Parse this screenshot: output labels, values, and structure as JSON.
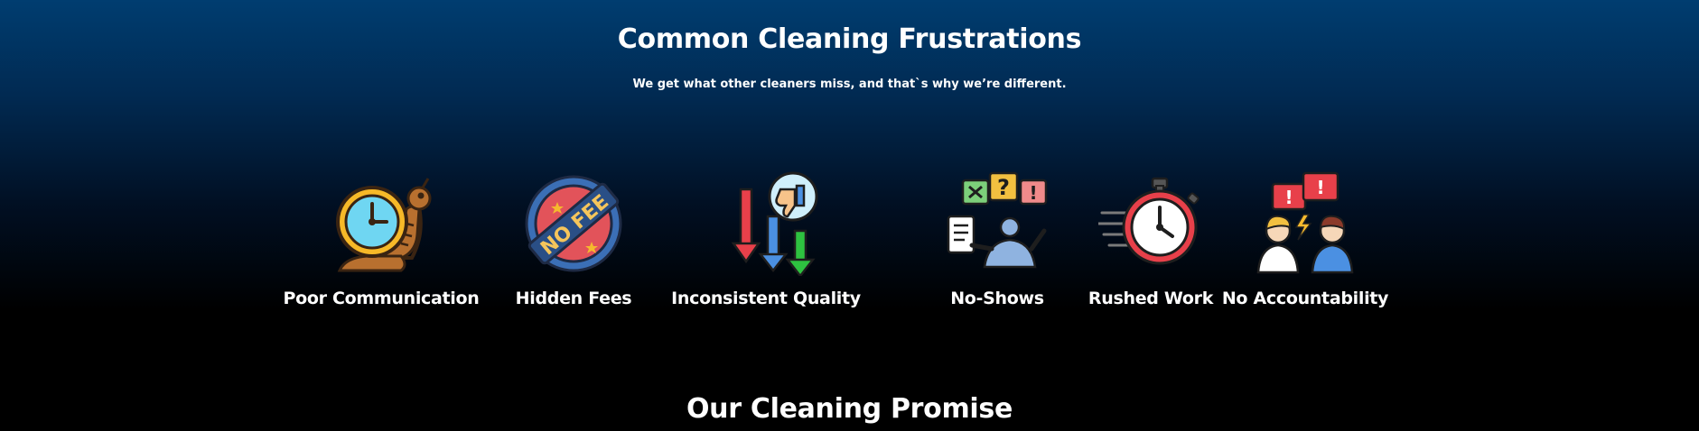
{
  "frustrations": {
    "title": "Common Cleaning Frustrations",
    "subtitle": "We get what other cleaners miss, and that`s why we’re different.",
    "items": [
      {
        "label": "Poor Communication",
        "icon": "snail-clock-icon"
      },
      {
        "label": "Hidden Fees",
        "icon": "no-fee-badge-icon"
      },
      {
        "label": "Inconsistent Quality",
        "icon": "down-arrows-thumbs-down-icon"
      },
      {
        "label": "No-Shows",
        "icon": "confused-person-icon"
      },
      {
        "label": "Rushed Work",
        "icon": "fast-stopwatch-icon"
      },
      {
        "label": "No Accountability",
        "icon": "arguing-people-icon"
      }
    ],
    "badge_text": "NO FEE"
  },
  "promise": {
    "title": "Our Cleaning Promise"
  }
}
